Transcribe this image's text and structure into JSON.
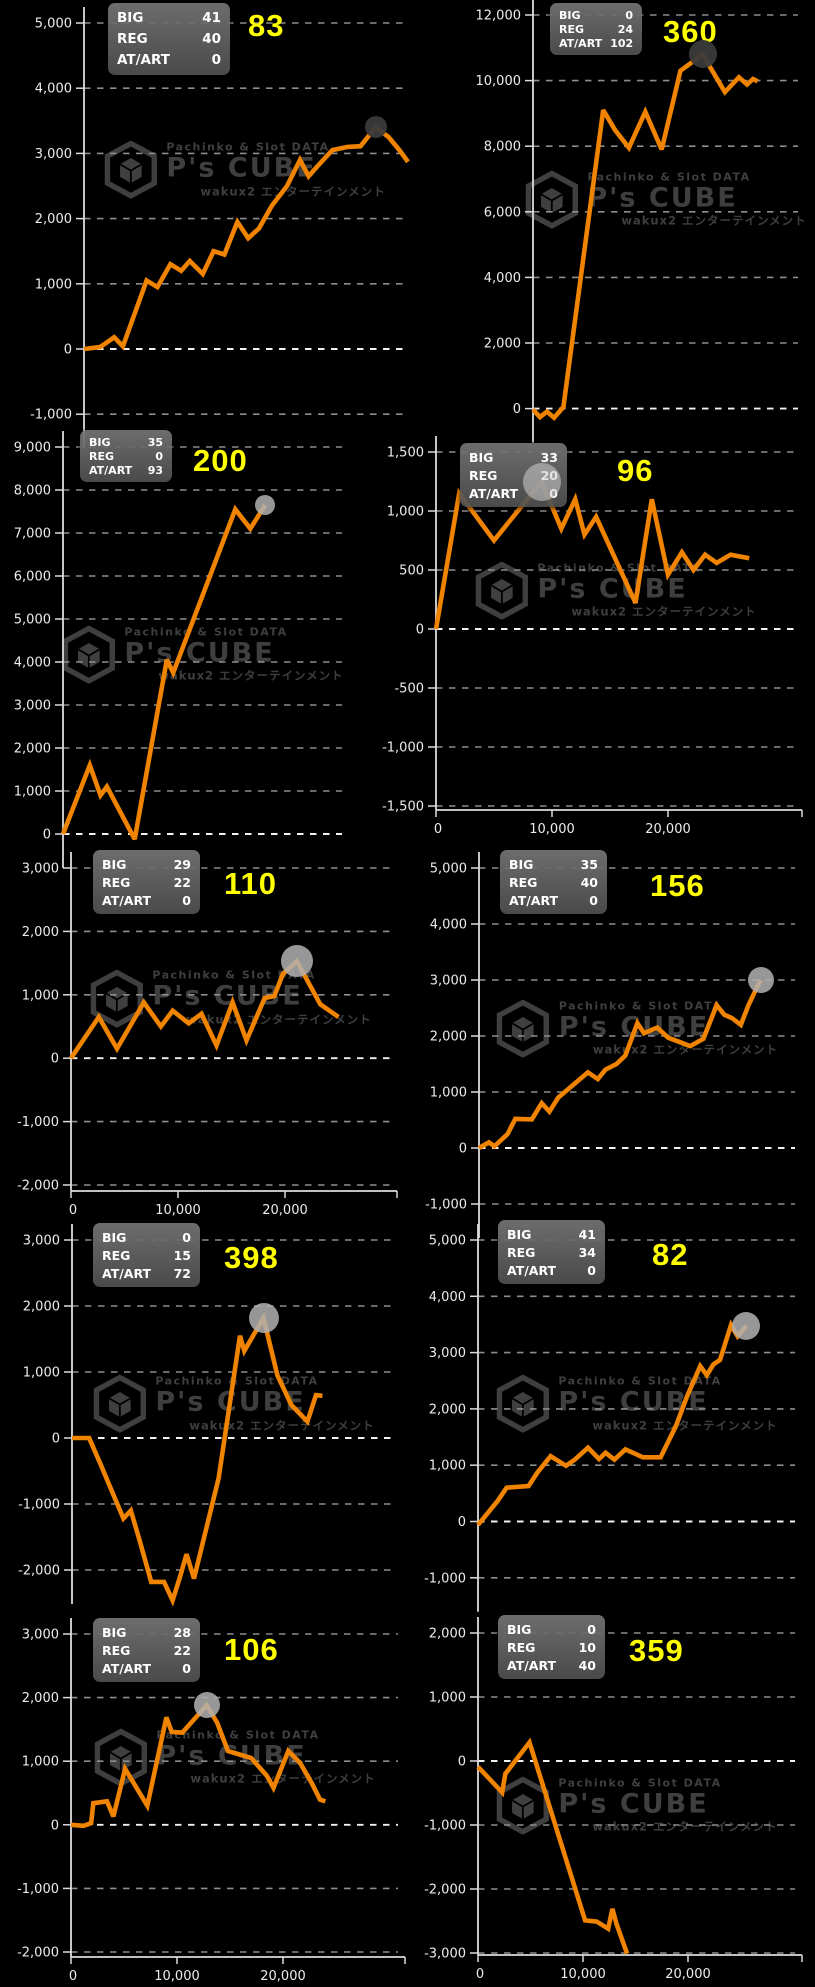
{
  "app": {
    "watermark": {
      "tagline": "Pachinko & Slot DATA",
      "brand": "P's CUBE",
      "subtitle": "wakux2 エンターテインメント",
      "logo": "ps-cube-logo-icon",
      "color": "#3f3f3f"
    }
  },
  "legend_labels": [
    "BIG",
    "REG",
    "AT/ART"
  ],
  "colors": {
    "background": "#000000",
    "line": "#f08300",
    "grid": "#8d8d8d",
    "zero_line": "#f2f2f2",
    "axis": "#dcdcdc",
    "label": "#ececec",
    "legend_bg": "#6a6a6a",
    "legend_text": "#ffffff",
    "headline_number": "#ffff00",
    "marker_light": "#b1b1b1",
    "marker_dark": "#3a3a3a"
  },
  "chart_data": [
    {
      "type": "line",
      "headline_number": "83",
      "counters": {
        "big": 41,
        "reg": 40,
        "at_art": 0
      },
      "ylim": [
        -1000,
        5000
      ],
      "y_step": 1000,
      "y_tick_labels": [
        "5,000",
        "4,000",
        "3,000",
        "2,000",
        "1,000",
        "0",
        "-1,000"
      ],
      "x_axis_shown": false,
      "x_ticks": [],
      "x_tick_labels": [],
      "points": [
        [
          0,
          0
        ],
        [
          1500,
          30
        ],
        [
          2800,
          180
        ],
        [
          3600,
          40
        ],
        [
          5800,
          1050
        ],
        [
          6800,
          950
        ],
        [
          8000,
          1300
        ],
        [
          9000,
          1200
        ],
        [
          9800,
          1350
        ],
        [
          11000,
          1150
        ],
        [
          12000,
          1500
        ],
        [
          13000,
          1450
        ],
        [
          14200,
          1950
        ],
        [
          15200,
          1700
        ],
        [
          16200,
          1850
        ],
        [
          17400,
          2200
        ],
        [
          18800,
          2500
        ],
        [
          20000,
          2900
        ],
        [
          20800,
          2650
        ],
        [
          21600,
          2800
        ],
        [
          23000,
          3050
        ],
        [
          24400,
          3100
        ],
        [
          25600,
          3110
        ],
        [
          27000,
          3400
        ],
        [
          28200,
          3250
        ],
        [
          29200,
          3050
        ],
        [
          30000,
          2870
        ]
      ],
      "marker_point": [
        27000,
        3400
      ]
    },
    {
      "type": "line",
      "headline_number": "360",
      "counters": {
        "big": 0,
        "reg": 24,
        "at_art": 102
      },
      "ylim": [
        0,
        12000
      ],
      "y_step": 2000,
      "y_tick_labels": [
        "12,000",
        "10,000",
        "8,000",
        "6,000",
        "4,000",
        "2,000",
        "0"
      ],
      "x_axis_shown": false,
      "x_ticks": [],
      "x_tick_labels": [],
      "points": [
        [
          0,
          -30
        ],
        [
          600,
          -260
        ],
        [
          1200,
          -90
        ],
        [
          1800,
          -280
        ],
        [
          2600,
          50
        ],
        [
          6000,
          9100
        ],
        [
          7000,
          8500
        ],
        [
          8200,
          7950
        ],
        [
          9600,
          9050
        ],
        [
          11000,
          7900
        ],
        [
          12600,
          10300
        ],
        [
          14500,
          10800
        ],
        [
          16400,
          9650
        ],
        [
          17600,
          10100
        ],
        [
          18300,
          9880
        ],
        [
          18800,
          10050
        ],
        [
          19200,
          9980
        ]
      ],
      "marker_point": [
        14500,
        10800
      ]
    },
    {
      "type": "line",
      "headline_number": "200",
      "counters": {
        "big": 35,
        "reg": 0,
        "at_art": 93
      },
      "ylim": [
        0,
        9000
      ],
      "y_step": 1000,
      "y_tick_labels": [
        "9,000",
        "8,000",
        "7,000",
        "6,000",
        "5,000",
        "4,000",
        "3,000",
        "2,000",
        "1,000",
        "0"
      ],
      "x_axis_shown": false,
      "x_ticks": [],
      "x_tick_labels": [],
      "points": [
        [
          0,
          0
        ],
        [
          2500,
          1600
        ],
        [
          3500,
          900
        ],
        [
          4100,
          1100
        ],
        [
          6700,
          -120
        ],
        [
          9700,
          4050
        ],
        [
          10300,
          3750
        ],
        [
          16100,
          7550
        ],
        [
          17500,
          7100
        ],
        [
          18900,
          7650
        ]
      ],
      "marker_point": [
        18900,
        7650
      ]
    },
    {
      "type": "line",
      "headline_number": "96",
      "counters": {
        "big": 33,
        "reg": 20,
        "at_art": 0
      },
      "ylim": [
        -1500,
        1500
      ],
      "y_step": 500,
      "y_tick_labels": [
        "1,500",
        "1,000",
        "500",
        "0",
        "-500",
        "-1,000",
        "-1,500"
      ],
      "x_axis_shown": true,
      "x_ticks": [
        0,
        10000,
        20000
      ],
      "x_tick_labels": [
        "0",
        "10,000",
        "20,000"
      ],
      "points": [
        [
          0,
          0
        ],
        [
          2000,
          1150
        ],
        [
          5000,
          750
        ],
        [
          9100,
          1250
        ],
        [
          10800,
          850
        ],
        [
          12000,
          1100
        ],
        [
          12800,
          800
        ],
        [
          13800,
          950
        ],
        [
          17200,
          220
        ],
        [
          18600,
          1100
        ],
        [
          20000,
          460
        ],
        [
          21200,
          650
        ],
        [
          22200,
          500
        ],
        [
          23200,
          630
        ],
        [
          24200,
          560
        ],
        [
          25400,
          630
        ],
        [
          27000,
          600
        ]
      ],
      "marker_point": [
        9100,
        1250
      ]
    },
    {
      "type": "line",
      "headline_number": "110",
      "counters": {
        "big": 29,
        "reg": 22,
        "at_art": 0
      },
      "ylim": [
        -2000,
        3000
      ],
      "y_step": 1000,
      "y_tick_labels": [
        "3,000",
        "2,000",
        "1,000",
        "0",
        "-1,000",
        "-2,000"
      ],
      "x_axis_shown": true,
      "x_ticks": [
        0,
        10000,
        20000
      ],
      "x_tick_labels": [
        "0",
        "10,000",
        "20,000"
      ],
      "points": [
        [
          0,
          0
        ],
        [
          2600,
          650
        ],
        [
          4300,
          150
        ],
        [
          6800,
          880
        ],
        [
          8400,
          500
        ],
        [
          9500,
          750
        ],
        [
          11000,
          550
        ],
        [
          12200,
          700
        ],
        [
          13600,
          200
        ],
        [
          15100,
          880
        ],
        [
          16400,
          280
        ],
        [
          18100,
          950
        ],
        [
          19000,
          980
        ],
        [
          19800,
          1330
        ],
        [
          21100,
          1530
        ],
        [
          23300,
          850
        ],
        [
          25000,
          650
        ]
      ],
      "marker_point": [
        21100,
        1530
      ]
    },
    {
      "type": "line",
      "headline_number": "156",
      "counters": {
        "big": 35,
        "reg": 40,
        "at_art": 0
      },
      "ylim": [
        -1000,
        5000
      ],
      "y_step": 1000,
      "y_tick_labels": [
        "5,000",
        "4,000",
        "3,000",
        "2,000",
        "1,000",
        "0",
        "-1,000"
      ],
      "x_axis_shown": false,
      "x_ticks": [],
      "x_tick_labels": [],
      "points": [
        [
          0,
          0
        ],
        [
          900,
          100
        ],
        [
          1400,
          30
        ],
        [
          2600,
          250
        ],
        [
          3300,
          520
        ],
        [
          4800,
          510
        ],
        [
          5700,
          800
        ],
        [
          6400,
          650
        ],
        [
          7200,
          900
        ],
        [
          8400,
          1100
        ],
        [
          9900,
          1350
        ],
        [
          10800,
          1230
        ],
        [
          11500,
          1400
        ],
        [
          12500,
          1500
        ],
        [
          13300,
          1650
        ],
        [
          14400,
          2230
        ],
        [
          15000,
          2050
        ],
        [
          16200,
          2150
        ],
        [
          17200,
          1970
        ],
        [
          18400,
          1880
        ],
        [
          19200,
          1820
        ],
        [
          20400,
          1950
        ],
        [
          21600,
          2550
        ],
        [
          22300,
          2380
        ],
        [
          23000,
          2320
        ],
        [
          23800,
          2200
        ],
        [
          24500,
          2550
        ],
        [
          25100,
          2800
        ],
        [
          25600,
          3000
        ]
      ],
      "marker_point": [
        25600,
        3000
      ]
    },
    {
      "type": "line",
      "headline_number": "398",
      "counters": {
        "big": 0,
        "reg": 15,
        "at_art": 72
      },
      "ylim": [
        -2000,
        3000
      ],
      "y_step": 1000,
      "y_tick_labels": [
        "3,000",
        "2,000",
        "1,000",
        "0",
        "-1,000",
        "-2,000"
      ],
      "x_axis_shown": false,
      "x_ticks": [],
      "x_tick_labels": [],
      "points": [
        [
          0,
          0
        ],
        [
          1600,
          0
        ],
        [
          2600,
          -370
        ],
        [
          4800,
          -1220
        ],
        [
          5500,
          -1100
        ],
        [
          6300,
          -1540
        ],
        [
          7400,
          -2180
        ],
        [
          8600,
          -2180
        ],
        [
          9400,
          -2460
        ],
        [
          10100,
          -2100
        ],
        [
          10700,
          -1760
        ],
        [
          11400,
          -2130
        ],
        [
          13700,
          -610
        ],
        [
          15700,
          1550
        ],
        [
          16100,
          1320
        ],
        [
          17900,
          1820
        ],
        [
          19200,
          950
        ],
        [
          20500,
          500
        ],
        [
          22000,
          250
        ],
        [
          22800,
          650
        ],
        [
          23400,
          640
        ]
      ],
      "marker_point": [
        17900,
        1820
      ]
    },
    {
      "type": "line",
      "headline_number": "82",
      "counters": {
        "big": 41,
        "reg": 34,
        "at_art": 0
      },
      "ylim": [
        -1000,
        5000
      ],
      "y_step": 1000,
      "y_tick_labels": [
        "5,000",
        "4,000",
        "3,000",
        "2,000",
        "1,000",
        "0",
        "-1,000"
      ],
      "x_axis_shown": false,
      "x_ticks": [],
      "x_tick_labels": [],
      "points": [
        [
          0,
          -60
        ],
        [
          1800,
          370
        ],
        [
          2600,
          600
        ],
        [
          4600,
          630
        ],
        [
          5400,
          870
        ],
        [
          6600,
          1160
        ],
        [
          8000,
          990
        ],
        [
          8800,
          1100
        ],
        [
          10000,
          1310
        ],
        [
          11000,
          1110
        ],
        [
          11600,
          1220
        ],
        [
          12400,
          1100
        ],
        [
          13400,
          1280
        ],
        [
          15000,
          1140
        ],
        [
          16600,
          1140
        ],
        [
          18000,
          1700
        ],
        [
          19000,
          2220
        ],
        [
          20200,
          2760
        ],
        [
          20800,
          2600
        ],
        [
          21400,
          2790
        ],
        [
          22000,
          2870
        ],
        [
          23000,
          3490
        ],
        [
          23600,
          3290
        ],
        [
          24400,
          3480
        ]
      ],
      "marker_point": [
        24400,
        3480
      ]
    },
    {
      "type": "line",
      "headline_number": "106",
      "counters": {
        "big": 28,
        "reg": 22,
        "at_art": 0
      },
      "ylim": [
        -2000,
        3000
      ],
      "y_step": 1000,
      "y_tick_labels": [
        "3,000",
        "2,000",
        "1,000",
        "0",
        "-1,000",
        "-2,000"
      ],
      "x_axis_shown": true,
      "x_ticks": [
        0,
        10000,
        20000
      ],
      "x_tick_labels": [
        "0",
        "10,000",
        "20,000"
      ],
      "points": [
        [
          0,
          0
        ],
        [
          1200,
          -15
        ],
        [
          1900,
          25
        ],
        [
          2100,
          340
        ],
        [
          3400,
          370
        ],
        [
          4000,
          130
        ],
        [
          5100,
          880
        ],
        [
          7200,
          300
        ],
        [
          9000,
          1690
        ],
        [
          9500,
          1460
        ],
        [
          10500,
          1450
        ],
        [
          12800,
          1880
        ],
        [
          13800,
          1600
        ],
        [
          14800,
          1160
        ],
        [
          17000,
          1050
        ],
        [
          18500,
          765
        ],
        [
          19100,
          580
        ],
        [
          20500,
          1160
        ],
        [
          21600,
          975
        ],
        [
          22700,
          660
        ],
        [
          23500,
          395
        ],
        [
          24000,
          370
        ]
      ],
      "marker_point": [
        12800,
        1880
      ]
    },
    {
      "type": "line",
      "headline_number": "359",
      "counters": {
        "big": 0,
        "reg": 10,
        "at_art": 40
      },
      "ylim": [
        -3000,
        2000
      ],
      "y_step": 1000,
      "y_tick_labels": [
        "2,000",
        "1,000",
        "0",
        "-1,000",
        "-2,000",
        "-3,000"
      ],
      "x_axis_shown": true,
      "x_ticks": [
        0,
        10000,
        20000
      ],
      "x_tick_labels": [
        "0",
        "10,000",
        "20,000"
      ],
      "points": [
        [
          0,
          -90
        ],
        [
          2300,
          -490
        ],
        [
          2600,
          -200
        ],
        [
          4900,
          290
        ],
        [
          10200,
          -2490
        ],
        [
          11300,
          -2510
        ],
        [
          12400,
          -2620
        ],
        [
          12800,
          -2310
        ],
        [
          13200,
          -2550
        ],
        [
          14200,
          -3010
        ]
      ],
      "marker_point": null
    }
  ]
}
